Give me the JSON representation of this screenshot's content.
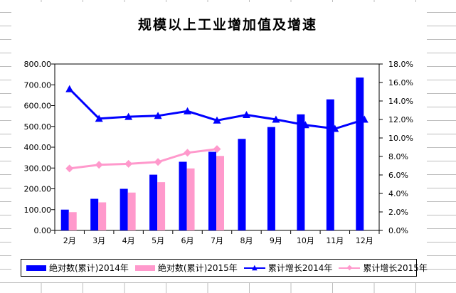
{
  "chart_data": {
    "type": "combo-bar-line",
    "title": "规模以上工业增加值及增速",
    "categories": [
      "2月",
      "3月",
      "4月",
      "5月",
      "6月",
      "7月",
      "8月",
      "9月",
      "10月",
      "11月",
      "12月"
    ],
    "series": [
      {
        "name": "绝对数(累计)2014年",
        "type": "bar",
        "axis": "left",
        "color": "#0000FF",
        "values": [
          100,
          152,
          200,
          268,
          330,
          378,
          440,
          497,
          558,
          630,
          735
        ]
      },
      {
        "name": "绝对数(累计)2015年",
        "type": "bar",
        "axis": "left",
        "color": "#FF99CC",
        "values": [
          88,
          135,
          182,
          232,
          298,
          358,
          null,
          null,
          null,
          null,
          null
        ]
      },
      {
        "name": "累计增长2014年",
        "type": "line",
        "axis": "right",
        "color": "#0000FF",
        "marker": "triangle",
        "values": [
          15.3,
          12.1,
          12.3,
          12.4,
          12.9,
          11.9,
          12.5,
          12.0,
          11.4,
          11.0,
          12.0
        ]
      },
      {
        "name": "累计增长2015年",
        "type": "line",
        "axis": "right",
        "color": "#FF99CC",
        "marker": "diamond",
        "values": [
          6.7,
          7.1,
          7.2,
          7.4,
          8.4,
          8.8,
          null,
          null,
          null,
          null,
          null
        ]
      }
    ],
    "left_axis": {
      "min": 0,
      "max": 800,
      "step": 100,
      "tick_labels": [
        "800.00",
        "700.00",
        "600.00",
        "500.00",
        "400.00",
        "300.00",
        "200.00",
        "100.00",
        "0.00"
      ]
    },
    "right_axis": {
      "min": 0,
      "max": 18,
      "step": 2,
      "tick_labels": [
        "18.0%",
        "16.0%",
        "14.0%",
        "12.0%",
        "10.0%",
        "8.0%",
        "6.0%",
        "4.0%",
        "2.0%",
        "0.0%"
      ]
    },
    "legend_position": "bottom",
    "grid": false,
    "plot_background": "#FFFFFF",
    "axis_color": "#000000",
    "marker_glyphs": {
      "triangle": "▲",
      "diamond": "◆"
    }
  },
  "sheet": {
    "gridline_color": "#BDBDBD"
  }
}
